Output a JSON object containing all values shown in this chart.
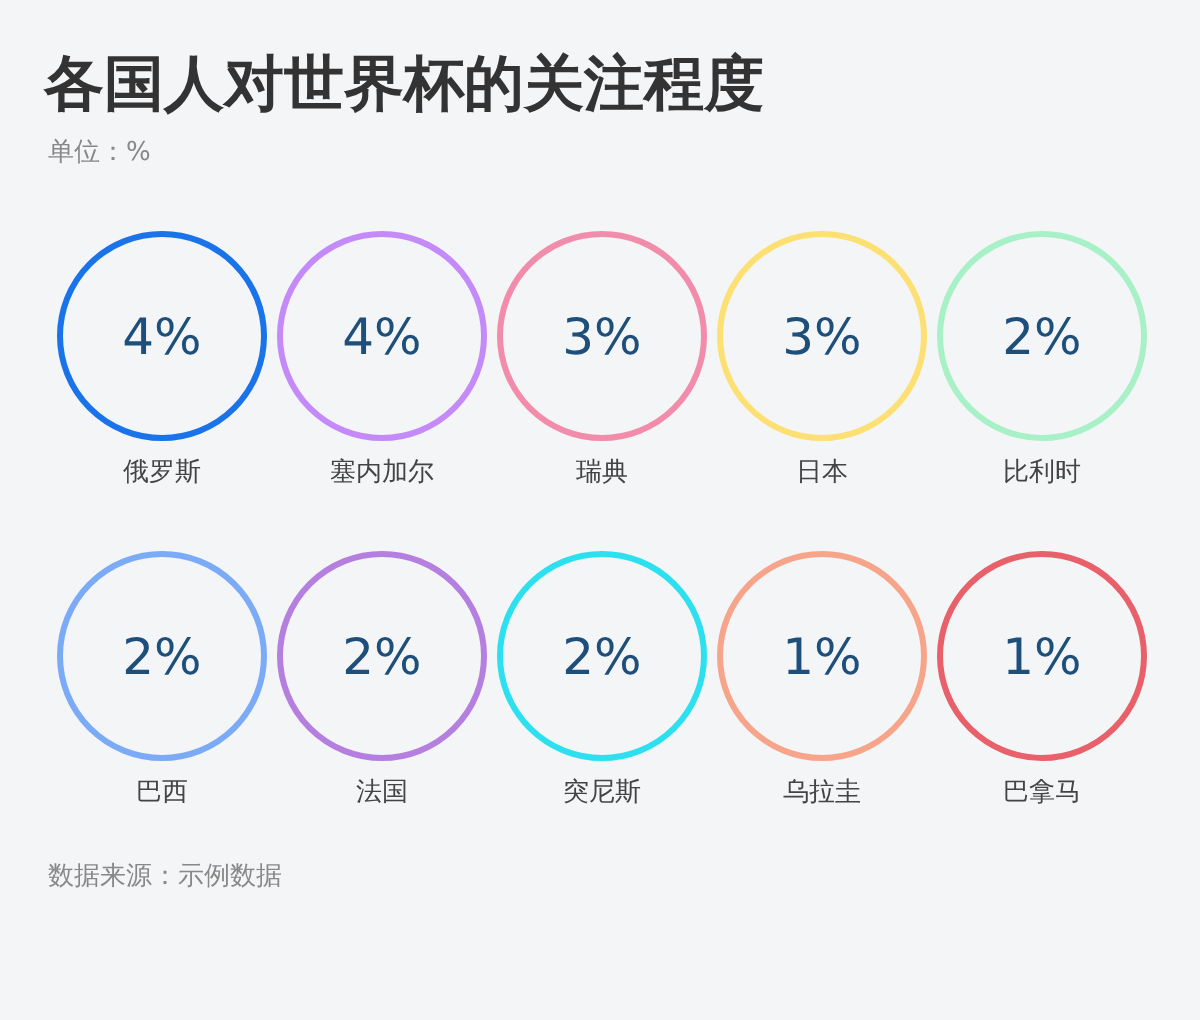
{
  "chart_data": {
    "type": "other",
    "title": "各国人对世界杯的关注程度",
    "subtitle": "单位：%",
    "categories": [
      "俄罗斯",
      "塞内加尔",
      "瑞典",
      "日本",
      "比利时",
      "巴西",
      "法国",
      "突尼斯",
      "乌拉圭",
      "巴拿马"
    ],
    "values": [
      4,
      4,
      3,
      3,
      2,
      2,
      2,
      2,
      1,
      1
    ],
    "value_labels": [
      "4%",
      "4%",
      "3%",
      "3%",
      "2%",
      "2%",
      "2%",
      "2%",
      "1%",
      "1%"
    ],
    "colors": [
      "#1a73e8",
      "#c58af9",
      "#f28cab",
      "#fde073",
      "#a8f0c6",
      "#7baaf7",
      "#b57fe0",
      "#2de0f0",
      "#f7a58a",
      "#e8606a"
    ],
    "annotations": [
      "数据来源：示例数据"
    ]
  }
}
